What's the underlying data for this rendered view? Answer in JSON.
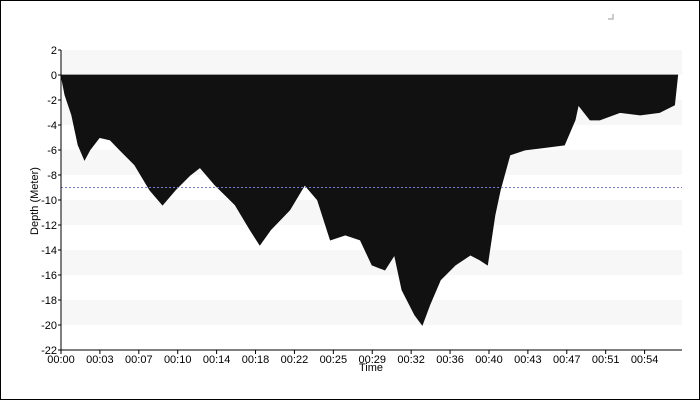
{
  "chart_data": {
    "type": "area",
    "x_label": "Time",
    "y_label": "Depth (Meter)",
    "color": "#111111",
    "banded": true,
    "reference_line": {
      "value": -9,
      "color": "#7a7ad0"
    },
    "xlim": [
      0,
      58.1
    ],
    "ylim": [
      -22,
      2
    ],
    "yticks": [
      2,
      0,
      -2,
      -4,
      -6,
      -8,
      -10,
      -12,
      -14,
      -16,
      -18,
      -20,
      -22
    ],
    "xticks": [
      {
        "value": 0,
        "label": "00:00"
      },
      {
        "value": 3.64,
        "label": "00:03"
      },
      {
        "value": 7.28,
        "label": "00:07"
      },
      {
        "value": 10.92,
        "label": "00:10"
      },
      {
        "value": 14.56,
        "label": "00:14"
      },
      {
        "value": 18.2,
        "label": "00:18"
      },
      {
        "value": 21.84,
        "label": "00:22"
      },
      {
        "value": 25.48,
        "label": "00:25"
      },
      {
        "value": 29.12,
        "label": "00:29"
      },
      {
        "value": 32.76,
        "label": "00:32"
      },
      {
        "value": 36.4,
        "label": "00:36"
      },
      {
        "value": 40.04,
        "label": "00:40"
      },
      {
        "value": 43.68,
        "label": "00:43"
      },
      {
        "value": 47.32,
        "label": "00:47"
      },
      {
        "value": 50.96,
        "label": "00:51"
      },
      {
        "value": 54.6,
        "label": "00:54"
      }
    ],
    "x": [
      0,
      0.37,
      1.0,
      1.6,
      2.2,
      2.7,
      3.6,
      4.6,
      5.5,
      6.9,
      8.3,
      9.5,
      10.7,
      12.1,
      13.0,
      14.4,
      16.3,
      17.7,
      18.6,
      19.6,
      21.4,
      22.8,
      24.0,
      25.2,
      26.6,
      28.0,
      29.1,
      30.3,
      31.2,
      31.9,
      33.1,
      33.8,
      34.5,
      35.5,
      36.9,
      38.3,
      39.2,
      39.9,
      40.6,
      41.1,
      42.0,
      43.4,
      45.3,
      47.1,
      48.1,
      48.4,
      49.5,
      50.4,
      52.3,
      54.2,
      56.0,
      57.4,
      57.7
    ],
    "values": [
      0,
      -1.6,
      -3.2,
      -5.6,
      -6.8,
      -6,
      -5,
      -5.2,
      -6,
      -7.2,
      -9.2,
      -10.4,
      -9.2,
      -8,
      -7.4,
      -8.8,
      -10.4,
      -12.4,
      -13.6,
      -12.4,
      -10.8,
      -8.8,
      -10,
      -13.2,
      -12.8,
      -13.2,
      -15.2,
      -15.6,
      -14.4,
      -17.2,
      -19.2,
      -20,
      -18.4,
      -16.4,
      -15.2,
      -14.4,
      -14.8,
      -15.2,
      -11.2,
      -9.2,
      -6.4,
      -6,
      -5.8,
      -5.6,
      -3.6,
      -2.4,
      -3.6,
      -3.6,
      -3,
      -3.2,
      -3,
      -2.4,
      0
    ]
  }
}
